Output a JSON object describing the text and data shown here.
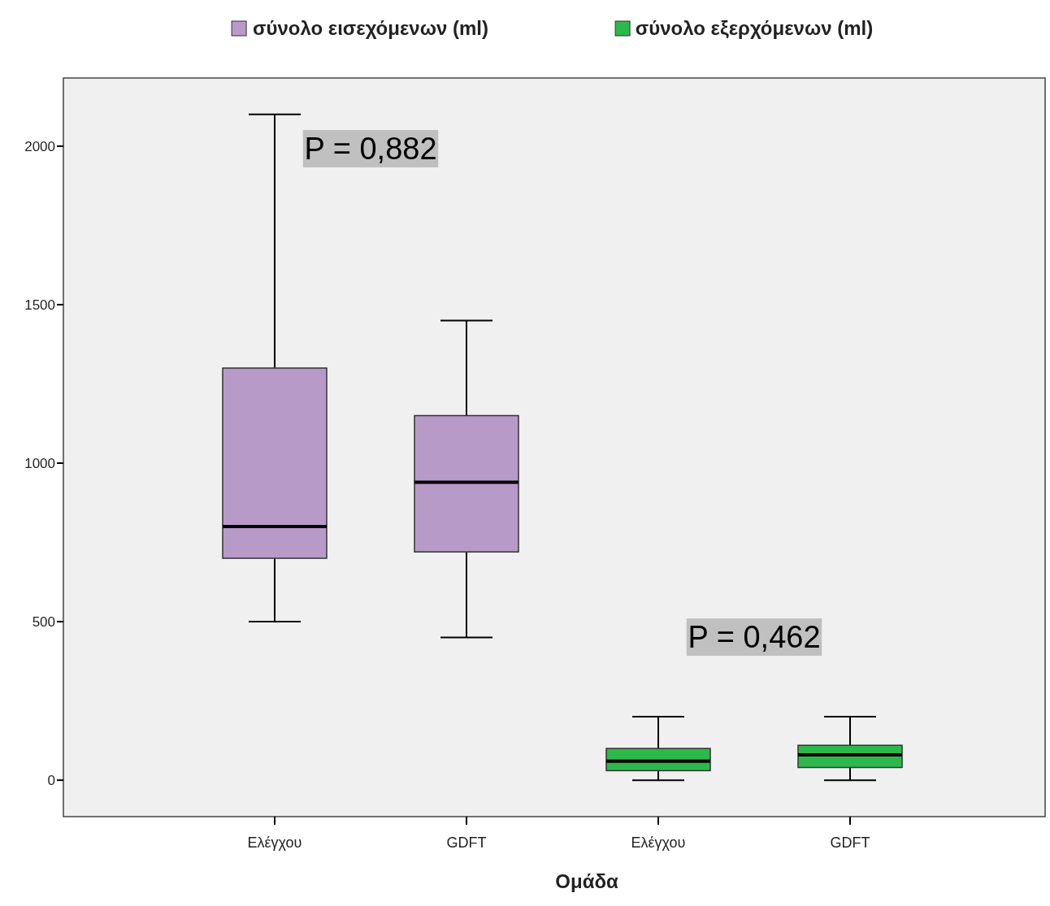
{
  "chart_data": {
    "type": "box",
    "xlabel": "Ομάδα",
    "categories": [
      "Ελέγχου",
      "GDFT",
      "Ελέγχου",
      "GDFT"
    ],
    "series": [
      {
        "name": "σύνολο εισεχόμενων (ml)",
        "color": "#b89ac9",
        "boxes": [
          {
            "low": 500,
            "q1": 700,
            "median": 800,
            "q3": 1300,
            "high": 2100
          },
          {
            "low": 450,
            "q1": 720,
            "median": 940,
            "q3": 1150,
            "high": 1450
          },
          null,
          null
        ]
      },
      {
        "name": "σύνολο εξερχόμενων (ml)",
        "color": "#2db84b",
        "boxes": [
          null,
          null,
          {
            "low": 0,
            "q1": 30,
            "median": 60,
            "q3": 100,
            "high": 200
          },
          {
            "low": 0,
            "q1": 40,
            "median": 80,
            "q3": 110,
            "high": 200
          }
        ]
      }
    ],
    "ylim": [
      -115,
      2215
    ],
    "yticks": [
      0,
      500,
      1000,
      1500,
      2000
    ],
    "annotations": [
      "P = 0,882",
      "P = 0,462"
    ],
    "grid": false,
    "legend": "top"
  }
}
